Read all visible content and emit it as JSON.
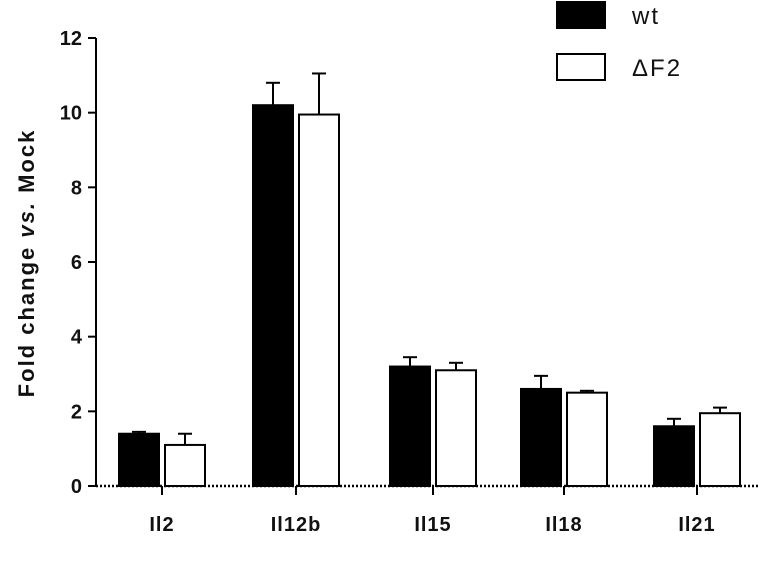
{
  "chart_data": {
    "type": "bar",
    "title": "",
    "xlabel": "",
    "ylabel": {
      "prefix": "Fold change ",
      "italic": "vs.",
      "suffix": " Mock"
    },
    "ylim": [
      0,
      12
    ],
    "yticks": [
      "0",
      "2",
      "4",
      "6",
      "8",
      "10",
      "12"
    ],
    "categories": [
      "Il2",
      "Il12b",
      "Il15",
      "Il18",
      "Il21"
    ],
    "legend_position": "top-right",
    "series": [
      {
        "name": "wt",
        "color": "#000000",
        "fill": "filled",
        "values": [
          1.4,
          10.2,
          3.2,
          2.6,
          1.6
        ],
        "errors": [
          0.05,
          0.6,
          0.25,
          0.35,
          0.2
        ]
      },
      {
        "name": "ΔF2",
        "color": "#ffffff",
        "fill": "open",
        "values": [
          1.1,
          9.95,
          3.1,
          2.5,
          1.95
        ],
        "errors": [
          0.3,
          1.1,
          0.2,
          0.05,
          0.15
        ]
      }
    ]
  }
}
